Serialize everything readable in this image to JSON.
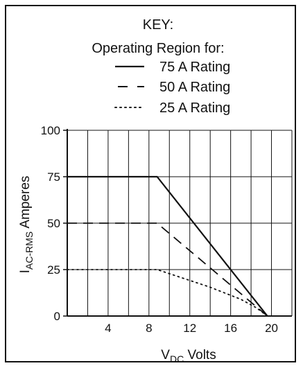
{
  "chart_data": {
    "type": "line",
    "title": "",
    "xlabel": "V",
    "xlabel_sub": "DC",
    "xlabel_suffix": " Volts",
    "ylabel": "I",
    "ylabel_sub": "AC-RMS",
    "ylabel_suffix": " Amperes",
    "xlim": [
      0,
      22
    ],
    "ylim": [
      0,
      100
    ],
    "x_ticks": [
      4,
      8,
      12,
      16,
      20
    ],
    "y_ticks": [
      0,
      25,
      50,
      75,
      100
    ],
    "x_gridlines": [
      2,
      4,
      6,
      8,
      10,
      12,
      14,
      16,
      18,
      20,
      22
    ],
    "y_gridlines": [
      0,
      25,
      50,
      75,
      100
    ],
    "grid": true,
    "legend": {
      "title": "KEY:",
      "subtitle": "Operating Region for:",
      "placement": "top"
    },
    "series": [
      {
        "name": "75 A Rating",
        "style": "solid",
        "color": "#111111",
        "x": [
          0,
          8.8,
          19.6
        ],
        "y": [
          75,
          75,
          0
        ]
      },
      {
        "name": "50 A Rating",
        "style": "dashed",
        "color": "#111111",
        "x": [
          0,
          8.8,
          19.6
        ],
        "y": [
          50,
          50,
          0
        ]
      },
      {
        "name": "25 A Rating",
        "style": "dotted",
        "color": "#111111",
        "x": [
          0,
          8.8,
          14,
          17,
          18.5,
          19.6
        ],
        "y": [
          25,
          25,
          15.5,
          9,
          4.5,
          0
        ]
      }
    ]
  }
}
